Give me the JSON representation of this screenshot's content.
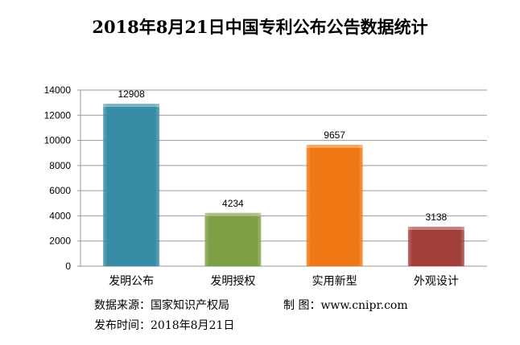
{
  "chart_data": {
    "type": "bar",
    "title": "2018年8月21日中国专利公布公告数据统计",
    "categories": [
      "发明公布",
      "发明授权",
      "实用新型",
      "外观设计"
    ],
    "values": [
      12908,
      4234,
      9657,
      3138
    ],
    "colors": [
      "#378ba4",
      "#7f9f45",
      "#f07814",
      "#a13e3a"
    ],
    "ylim": [
      0,
      14000
    ],
    "yticks": [
      0,
      2000,
      4000,
      6000,
      8000,
      10000,
      12000,
      14000
    ],
    "grid": true,
    "xlabel": "",
    "ylabel": ""
  },
  "footer": {
    "source": "数据来源：国家知识产权局",
    "maker": "制 图：www.cnipr.com",
    "date": "发布时间：2018年8月21日"
  }
}
